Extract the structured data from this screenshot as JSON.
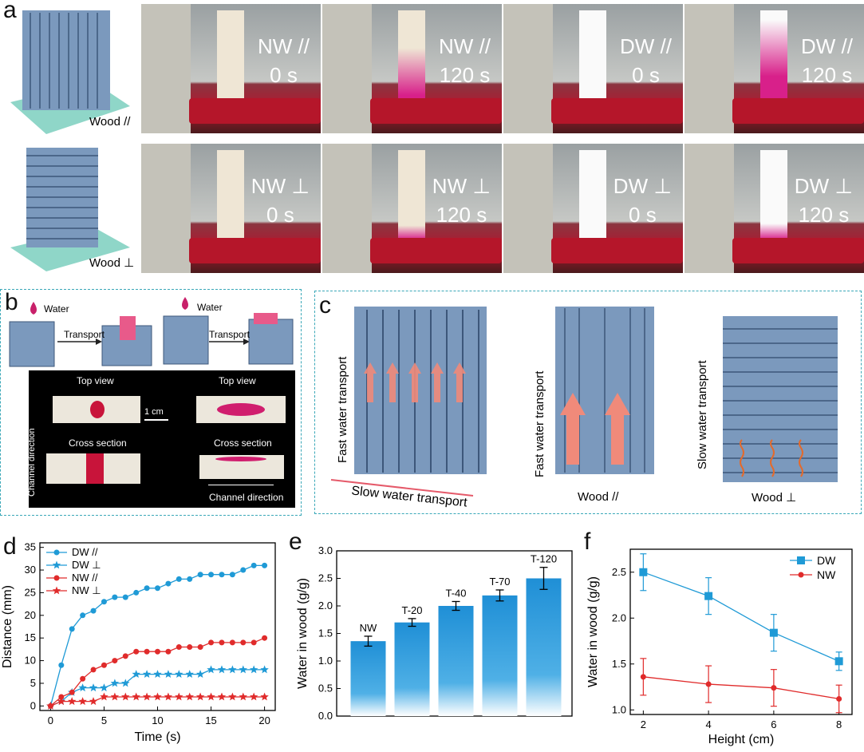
{
  "panel_labels": {
    "a": "a",
    "b": "b",
    "c": "c",
    "d": "d",
    "e": "e",
    "f": "f"
  },
  "panel_a": {
    "wood_parallel": "Wood //",
    "wood_perp": "Wood ⊥",
    "photos_top": [
      {
        "sample": "NW //",
        "time": "0 s"
      },
      {
        "sample": "NW //",
        "time": "120 s"
      },
      {
        "sample": "DW //",
        "time": "0 s"
      },
      {
        "sample": "DW //",
        "time": "120 s"
      }
    ],
    "photos_bottom": [
      {
        "sample": "NW ⊥",
        "time": "0 s"
      },
      {
        "sample": "NW ⊥",
        "time": "120 s"
      },
      {
        "sample": "DW ⊥",
        "time": "0 s"
      },
      {
        "sample": "DW ⊥",
        "time": "120 s"
      }
    ]
  },
  "panel_b": {
    "water_1": "Water",
    "water_2": "Water",
    "transport_1": "Transport",
    "transport_2": "Transport",
    "top_view_1": "Top view",
    "top_view_2": "Top view",
    "scale": "1 cm",
    "cross_1": "Cross section",
    "cross_2": "Cross section",
    "channel_1": "Channel direction",
    "channel_2": "Channel direction"
  },
  "panel_c": {
    "fast_1": "Fast water transport",
    "slow_1": "Slow water transport",
    "fast_2": "Fast water transport",
    "wood_parallel": "Wood //",
    "slow_2": "Slow water transport",
    "wood_perp": "Wood ⊥"
  },
  "colors": {
    "blue": "#1f9ad6",
    "red": "#e02b2b",
    "dash": "#3aa8b8"
  },
  "chart_data": [
    {
      "id": "d",
      "type": "line",
      "xlabel": "Time (s)",
      "ylabel": "Distance (mm)",
      "xlim": [
        -1,
        21
      ],
      "ylim": [
        -1,
        36
      ],
      "xticks": [
        0,
        5,
        10,
        15,
        20
      ],
      "yticks": [
        0,
        5,
        10,
        15,
        20,
        25,
        30,
        35
      ],
      "x": [
        0,
        1,
        2,
        3,
        4,
        5,
        6,
        7,
        8,
        9,
        10,
        11,
        12,
        13,
        14,
        15,
        16,
        17,
        18,
        19,
        20
      ],
      "series": [
        {
          "name": "DW //",
          "color": "#1f9ad6",
          "marker": "circle",
          "values": [
            0,
            9,
            17,
            20,
            21,
            23,
            24,
            24,
            25,
            26,
            26,
            27,
            28,
            28,
            29,
            29,
            29,
            29,
            30,
            31,
            31
          ]
        },
        {
          "name": "DW ⊥",
          "color": "#1f9ad6",
          "marker": "star",
          "values": [
            0,
            1,
            3,
            4,
            4,
            4,
            5,
            5,
            7,
            7,
            7,
            7,
            7,
            7,
            7,
            8,
            8,
            8,
            8,
            8,
            8
          ]
        },
        {
          "name": "NW //",
          "color": "#e02b2b",
          "marker": "circle",
          "values": [
            0,
            2,
            3,
            6,
            8,
            9,
            10,
            11,
            12,
            12,
            12,
            12,
            13,
            13,
            13,
            14,
            14,
            14,
            14,
            14,
            15
          ]
        },
        {
          "name": "NW ⊥",
          "color": "#e02b2b",
          "marker": "star",
          "values": [
            0,
            1,
            1,
            1,
            1,
            2,
            2,
            2,
            2,
            2,
            2,
            2,
            2,
            2,
            2,
            2,
            2,
            2,
            2,
            2,
            2
          ]
        }
      ]
    },
    {
      "id": "e",
      "type": "bar",
      "ylabel": "Water in wood (g/g)",
      "ylim": [
        0,
        3.0
      ],
      "yticks": [
        "0.0",
        "0.5",
        "1.0",
        "1.5",
        "2.0",
        "2.5",
        "3.0"
      ],
      "categories": [
        "NW",
        "T-20",
        "T-40",
        "T-70",
        "T-120"
      ],
      "values": [
        1.36,
        1.7,
        2.0,
        2.19,
        2.5
      ],
      "errors": [
        0.09,
        0.07,
        0.08,
        0.1,
        0.2
      ]
    },
    {
      "id": "f",
      "type": "line",
      "xlabel": "Height (cm)",
      "ylabel": "Water in wood (g/g)",
      "xlim": [
        1.6,
        8.4
      ],
      "ylim": [
        0.95,
        2.75
      ],
      "xticks": [
        2,
        4,
        6,
        8
      ],
      "yticks": [
        "1.0",
        "1.5",
        "2.0",
        "2.5"
      ],
      "x": [
        2,
        4,
        6,
        8
      ],
      "series": [
        {
          "name": "DW",
          "color": "#1f9ad6",
          "marker": "square",
          "values": [
            2.5,
            2.24,
            1.84,
            1.53
          ],
          "errors": [
            0.2,
            0.2,
            0.2,
            0.1
          ]
        },
        {
          "name": "NW",
          "color": "#e02b2b",
          "marker": "circle",
          "values": [
            1.36,
            1.28,
            1.24,
            1.12
          ],
          "errors": [
            0.2,
            0.2,
            0.2,
            0.15
          ]
        }
      ]
    }
  ]
}
